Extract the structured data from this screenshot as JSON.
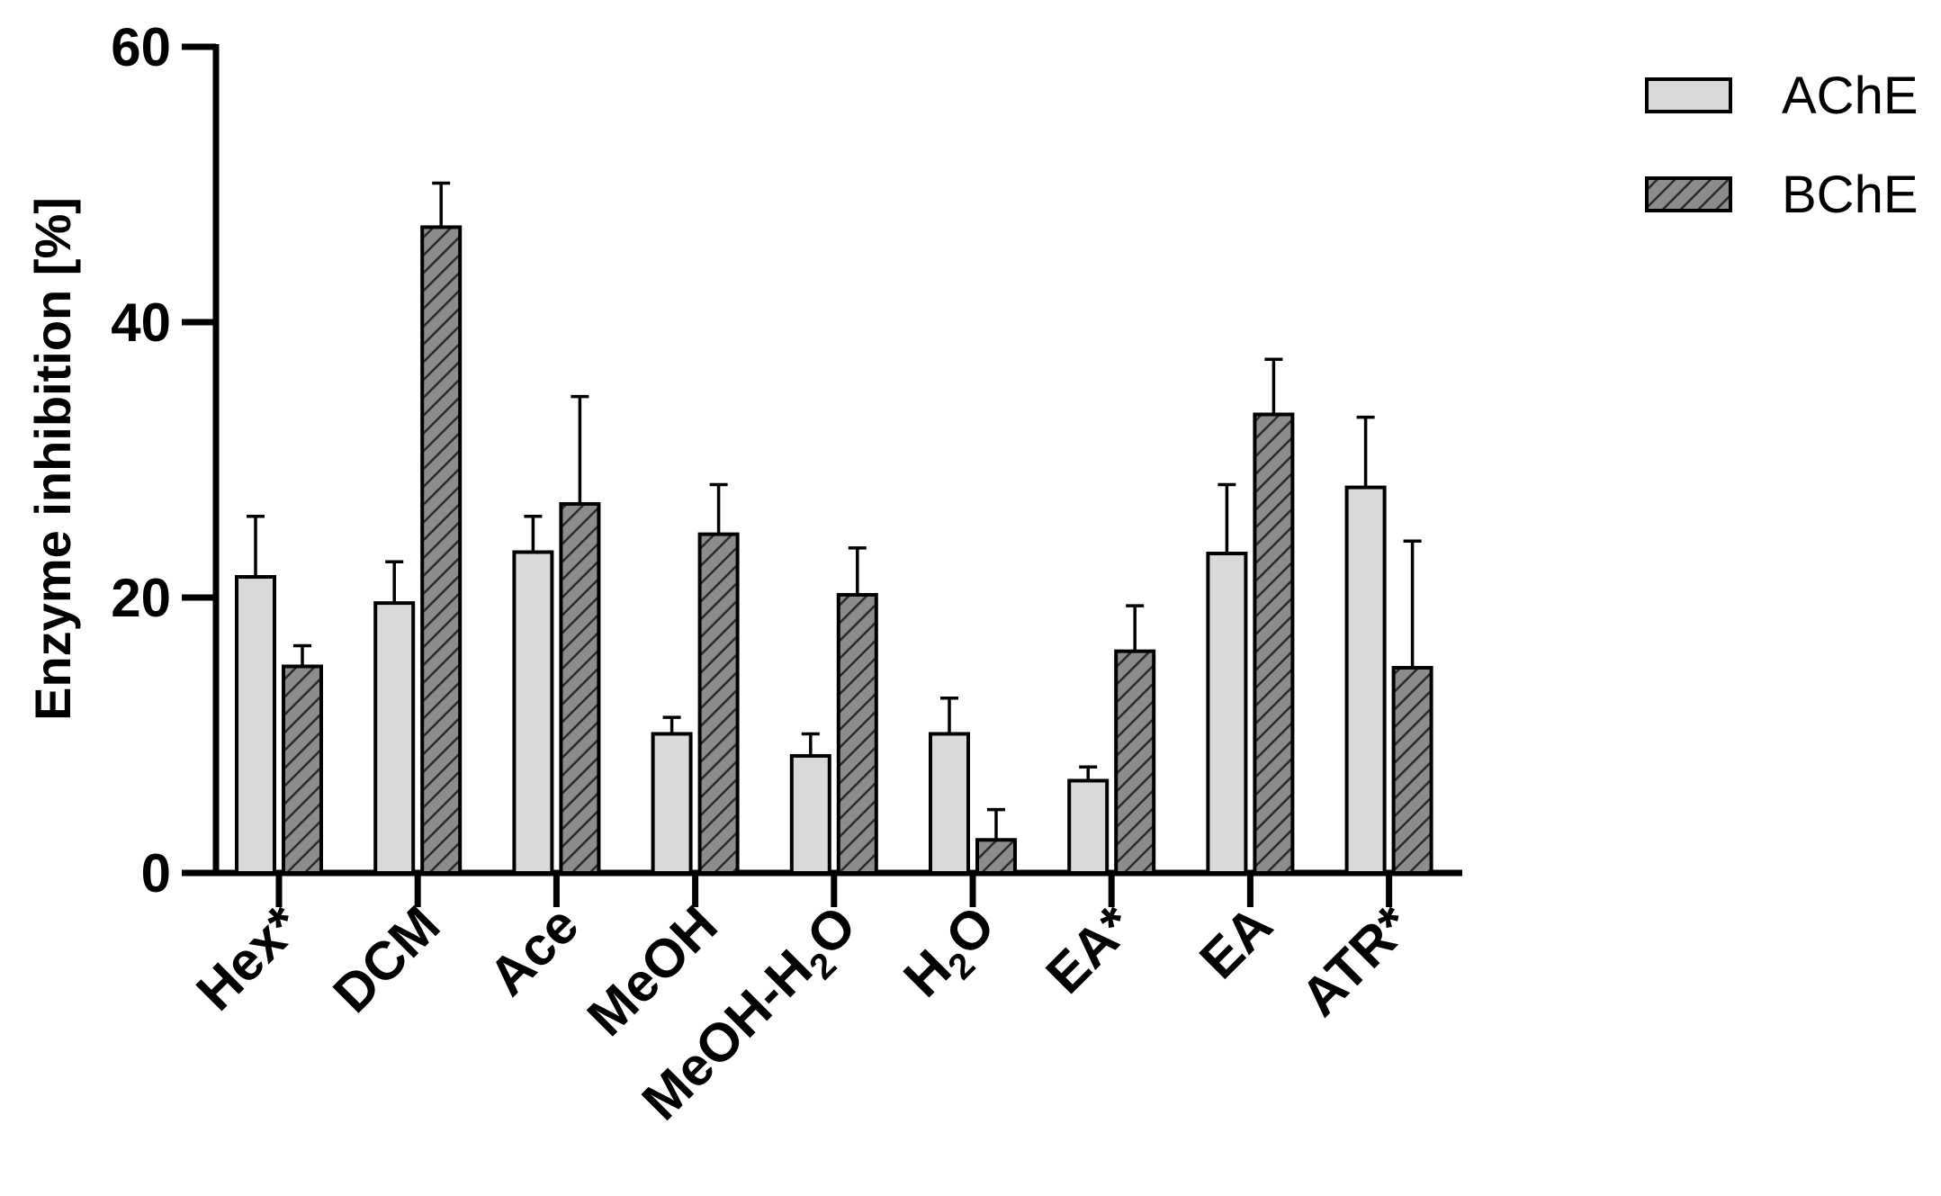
{
  "chart_data": {
    "type": "bar",
    "title": "",
    "xlabel": "",
    "ylabel": "Enzyme inhibition [%]",
    "ylim": [
      0,
      60
    ],
    "yticks": [
      "0",
      "20",
      "40",
      "60"
    ],
    "categories": [
      {
        "main": "Hex*",
        "sub": "",
        "post": ""
      },
      {
        "main": "DCM",
        "sub": "",
        "post": ""
      },
      {
        "main": "Ace",
        "sub": "",
        "post": ""
      },
      {
        "main": "MeOH",
        "sub": "",
        "post": ""
      },
      {
        "main": "MeOH-H",
        "sub": "2",
        "post": "O"
      },
      {
        "main": "H",
        "sub": "2",
        "post": "O"
      },
      {
        "main": "EA*",
        "sub": "",
        "post": ""
      },
      {
        "main": "EA",
        "sub": "",
        "post": ""
      },
      {
        "main": "ATR*",
        "sub": "",
        "post": ""
      }
    ],
    "series": [
      {
        "name": "AChE",
        "pattern": "solid",
        "color": "#d9d9d9",
        "values": [
          21.5,
          19.6,
          23.3,
          10.1,
          8.5,
          10.1,
          6.7,
          23.2,
          28.0
        ],
        "errors": [
          4.4,
          3.0,
          2.6,
          1.2,
          1.6,
          2.6,
          1.0,
          5.0,
          5.1
        ]
      },
      {
        "name": "BChE",
        "pattern": "hatched",
        "color": "#8c8c8c",
        "values": [
          15.0,
          46.9,
          26.8,
          24.6,
          20.2,
          2.4,
          16.1,
          33.3,
          14.9
        ],
        "errors": [
          1.5,
          3.2,
          7.8,
          3.6,
          3.4,
          2.2,
          3.3,
          4.0,
          9.2
        ]
      }
    ],
    "grid": false,
    "legend_position": "top-right"
  }
}
